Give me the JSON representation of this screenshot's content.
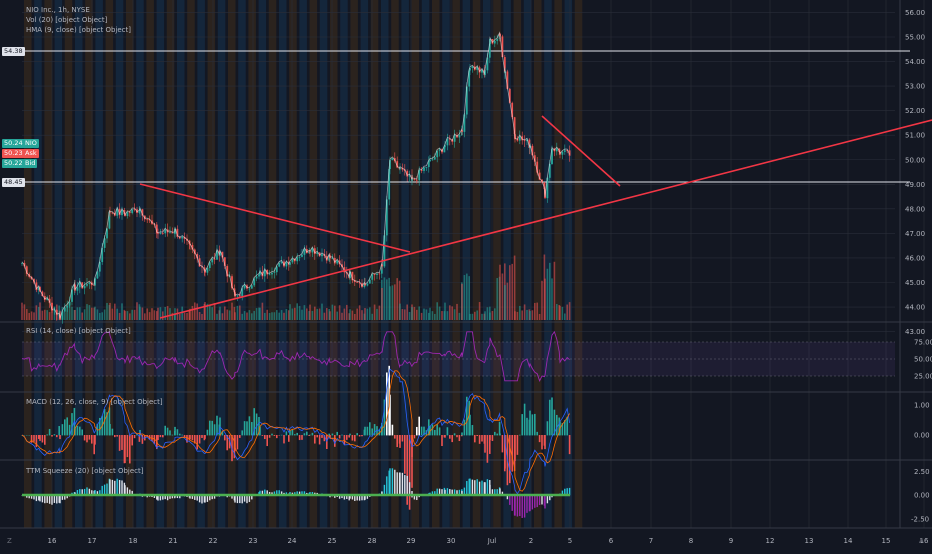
{
  "header": {
    "symbol_line": "NIO Inc., 1h, NYSE",
    "volume_line": "Vol (20) [object Object]",
    "hma_line": "HMA (9, close) [object Object]"
  },
  "rsi": {
    "label": "RSI (14, close) [object Object]",
    "levels": [
      "75.00",
      "50.00",
      "25.00"
    ]
  },
  "macd": {
    "label": "MACD (12, 26, close, 9) [object Object]",
    "levels": [
      "1.00",
      "0.00"
    ]
  },
  "ttm": {
    "label": "TTM Squeeze (20) [object Object]",
    "levels": [
      "2.50",
      "0.00",
      "-2.50"
    ]
  },
  "price_axis": [
    "56.00",
    "55.00",
    "54.00",
    "53.00",
    "52.00",
    "51.00",
    "50.00",
    "49.00",
    "48.00",
    "47.00",
    "46.00",
    "45.00",
    "44.00",
    "43.00"
  ],
  "level_tags": {
    "upper": "54.38",
    "lower": "48.45"
  },
  "quote_tags": [
    {
      "price": "50.24",
      "name": "NIO",
      "color": "#26a69a"
    },
    {
      "price": "50.23",
      "name": "Ask",
      "color": "#ef5350"
    },
    {
      "price": "50.22",
      "name": "Bid",
      "color": "#26a69a"
    }
  ],
  "time_axis": [
    "16",
    "17",
    "18",
    "21",
    "22",
    "23",
    "24",
    "25",
    "28",
    "29",
    "30",
    "Jul",
    "2",
    "5",
    "6",
    "7",
    "8",
    "9",
    "12",
    "13",
    "14",
    "15",
    "16"
  ],
  "corner_left": "Z",
  "corner_right": "A",
  "colors": {
    "up": "#26a69a",
    "down": "#ef5350",
    "trendline": "#f23645",
    "hma": "#ffffff",
    "rsi": "#9c27b0",
    "squeeze": "#4caf50",
    "background": "#131722"
  }
}
